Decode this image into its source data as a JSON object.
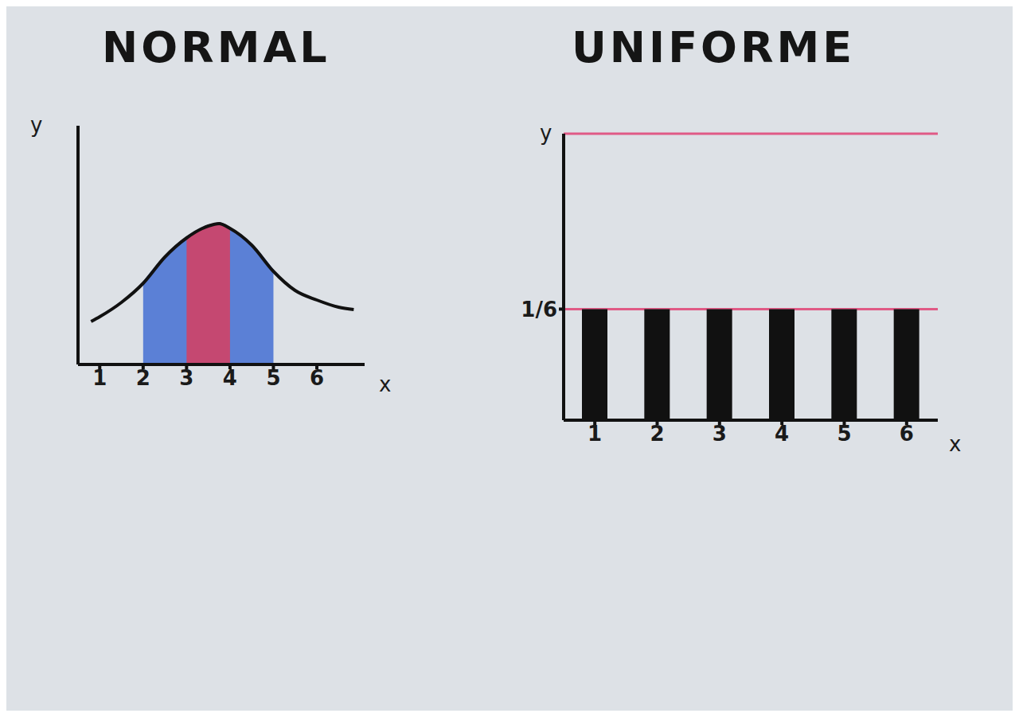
{
  "chart_data": [
    {
      "type": "area",
      "title": "NORMAL",
      "x_label": "x",
      "y_label": "y",
      "x": [
        0.8,
        1,
        1.5,
        2,
        2.5,
        3,
        3.5,
        3.75,
        4,
        4.5,
        5,
        5.5,
        6,
        6.5,
        6.85
      ],
      "values": [
        0.18,
        0.2,
        0.26,
        0.34,
        0.45,
        0.53,
        0.58,
        0.59,
        0.57,
        0.5,
        0.39,
        0.31,
        0.27,
        0.24,
        0.23
      ],
      "color": "#111111",
      "regions": [
        {
          "from": 2,
          "to": 5,
          "color": "#2f5fd0"
        },
        {
          "from": 3,
          "to": 4,
          "color": "#e8364f"
        }
      ],
      "xlim": [
        0.5,
        7.1
      ],
      "ylim": [
        0,
        1
      ],
      "xticks": [
        1,
        2,
        3,
        4,
        5,
        6
      ],
      "tick_labels": "x",
      "grid": false
    },
    {
      "type": "bar",
      "title": "UNIFORME",
      "x_label": "x",
      "y_label": "y",
      "categories": [
        1,
        2,
        3,
        4,
        5,
        6
      ],
      "values": [
        0.1667,
        0.1667,
        0.1667,
        0.1667,
        0.1667,
        0.1667
      ],
      "color": "#111111",
      "ylim": [
        0,
        0.43
      ],
      "yticks": [
        {
          "value": 0.1667,
          "label": "1/6"
        }
      ],
      "grid": true
    }
  ]
}
